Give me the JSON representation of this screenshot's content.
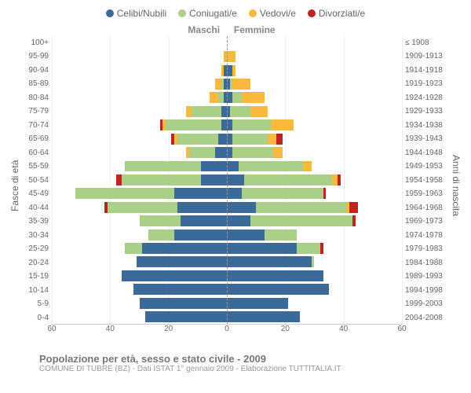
{
  "legend": [
    {
      "label": "Celibi/Nubili",
      "color": "#3b6a99"
    },
    {
      "label": "Coniugati/e",
      "color": "#a9cf88"
    },
    {
      "label": "Vedovi/e",
      "color": "#f8b93c"
    },
    {
      "label": "Divorziati/e",
      "color": "#c12320"
    }
  ],
  "labels": {
    "male": "Maschi",
    "female": "Femmine",
    "left_axis": "Fasce di età",
    "right_axis": "Anni di nascita"
  },
  "title": "Popolazione per età, sesso e stato civile - 2009",
  "subtitle": "COMUNE DI TUBRE (BZ) - Dati ISTAT 1° gennaio 2009 - Elaborazione TUTTITALIA.IT",
  "x_max": 60,
  "x_ticks_left": [
    60,
    40,
    20,
    0
  ],
  "x_ticks_right": [
    0,
    20,
    40,
    60
  ],
  "rows": [
    {
      "age": "100+",
      "birth": "≤ 1908",
      "m": [
        0,
        0,
        0,
        0
      ],
      "f": [
        0,
        0,
        0,
        0
      ]
    },
    {
      "age": "95-99",
      "birth": "1909-1913",
      "m": [
        0,
        0,
        1,
        0
      ],
      "f": [
        0,
        0,
        3,
        0
      ]
    },
    {
      "age": "90-94",
      "birth": "1914-1918",
      "m": [
        1,
        0,
        1,
        0
      ],
      "f": [
        2,
        0,
        1,
        0
      ]
    },
    {
      "age": "85-89",
      "birth": "1919-1923",
      "m": [
        1,
        1,
        2,
        0
      ],
      "f": [
        1,
        1,
        6,
        0
      ]
    },
    {
      "age": "80-84",
      "birth": "1924-1928",
      "m": [
        1,
        2,
        3,
        0
      ],
      "f": [
        2,
        3,
        8,
        0
      ]
    },
    {
      "age": "75-79",
      "birth": "1929-1933",
      "m": [
        2,
        10,
        2,
        0
      ],
      "f": [
        1,
        7,
        6,
        0
      ]
    },
    {
      "age": "70-74",
      "birth": "1934-1938",
      "m": [
        2,
        19,
        1,
        1
      ],
      "f": [
        2,
        13,
        8,
        0
      ]
    },
    {
      "age": "65-69",
      "birth": "1939-1943",
      "m": [
        3,
        14,
        1,
        1
      ],
      "f": [
        2,
        12,
        3,
        2
      ]
    },
    {
      "age": "60-64",
      "birth": "1944-1948",
      "m": [
        4,
        9,
        1,
        0
      ],
      "f": [
        2,
        14,
        3,
        0
      ]
    },
    {
      "age": "55-59",
      "birth": "1949-1953",
      "m": [
        9,
        26,
        0,
        0
      ],
      "f": [
        4,
        22,
        3,
        0
      ]
    },
    {
      "age": "50-54",
      "birth": "1954-1958",
      "m": [
        9,
        27,
        0,
        2
      ],
      "f": [
        6,
        30,
        2,
        1
      ]
    },
    {
      "age": "45-49",
      "birth": "1959-1963",
      "m": [
        18,
        34,
        0,
        0
      ],
      "f": [
        5,
        28,
        0,
        1
      ]
    },
    {
      "age": "40-44",
      "birth": "1964-1968",
      "m": [
        17,
        24,
        0,
        1
      ],
      "f": [
        10,
        31,
        1,
        3
      ]
    },
    {
      "age": "35-39",
      "birth": "1969-1973",
      "m": [
        16,
        14,
        0,
        0
      ],
      "f": [
        8,
        35,
        0,
        1
      ]
    },
    {
      "age": "30-34",
      "birth": "1974-1978",
      "m": [
        18,
        9,
        0,
        0
      ],
      "f": [
        13,
        11,
        0,
        0
      ]
    },
    {
      "age": "25-29",
      "birth": "1979-1983",
      "m": [
        29,
        6,
        0,
        0
      ],
      "f": [
        24,
        8,
        0,
        1
      ]
    },
    {
      "age": "20-24",
      "birth": "1984-1988",
      "m": [
        31,
        0,
        0,
        0
      ],
      "f": [
        29,
        1,
        0,
        0
      ]
    },
    {
      "age": "15-19",
      "birth": "1989-1993",
      "m": [
        36,
        0,
        0,
        0
      ],
      "f": [
        33,
        0,
        0,
        0
      ]
    },
    {
      "age": "10-14",
      "birth": "1994-1998",
      "m": [
        32,
        0,
        0,
        0
      ],
      "f": [
        35,
        0,
        0,
        0
      ]
    },
    {
      "age": "5-9",
      "birth": "1999-2003",
      "m": [
        30,
        0,
        0,
        0
      ],
      "f": [
        21,
        0,
        0,
        0
      ]
    },
    {
      "age": "0-4",
      "birth": "2004-2008",
      "m": [
        28,
        0,
        0,
        0
      ],
      "f": [
        25,
        0,
        0,
        0
      ]
    }
  ]
}
